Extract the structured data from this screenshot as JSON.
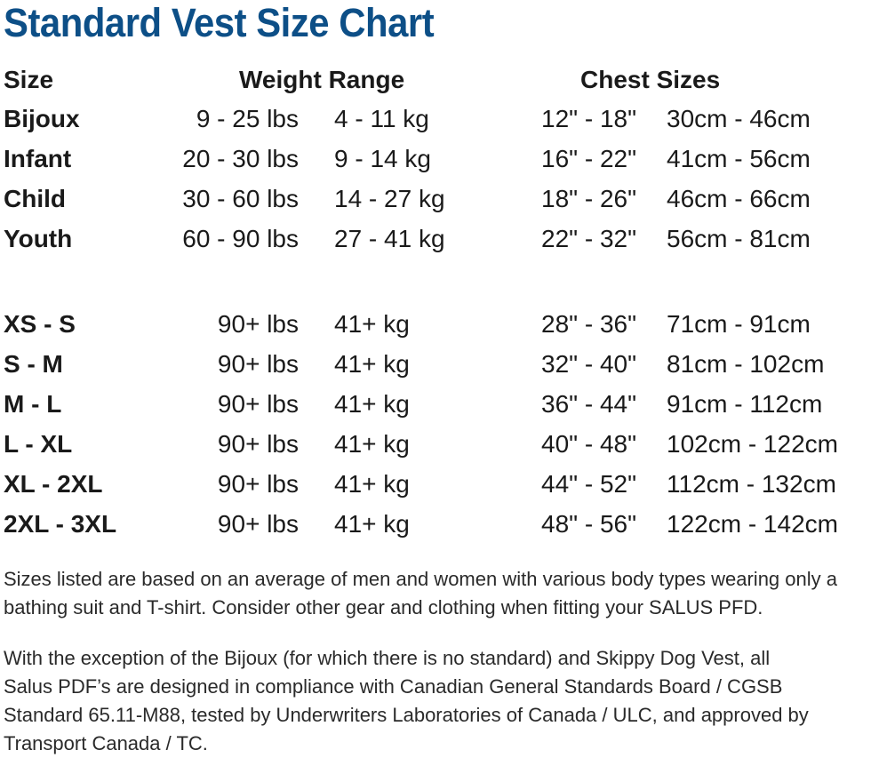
{
  "title": "Standard Vest Size Chart",
  "headers": {
    "size": "Size",
    "weight": "Weight Range",
    "chest": "Chest Sizes"
  },
  "rows": [
    {
      "size": "Bijoux",
      "lbs": "9 - 25 lbs",
      "kg": "4 - 11 kg",
      "inches": "12\" - 18\"",
      "cm": "30cm - 46cm"
    },
    {
      "size": "Infant",
      "lbs": "20 - 30 lbs",
      "kg": "9 - 14 kg",
      "inches": "16\" - 22\"",
      "cm": "41cm - 56cm"
    },
    {
      "size": "Child",
      "lbs": "30 - 60 lbs",
      "kg": "14 - 27 kg",
      "inches": "18\" - 26\"",
      "cm": "46cm - 66cm"
    },
    {
      "size": "Youth",
      "lbs": "60 - 90 lbs",
      "kg": "27 - 41 kg",
      "inches": "22\" - 32\"",
      "cm": "56cm - 81cm"
    },
    {
      "size": "XS - S",
      "lbs": "90+ lbs",
      "kg": "41+ kg",
      "inches": "28\" - 36\"",
      "cm": "71cm - 91cm"
    },
    {
      "size": "S - M",
      "lbs": "90+ lbs",
      "kg": "41+ kg",
      "inches": "32\" - 40\"",
      "cm": "81cm - 102cm"
    },
    {
      "size": "M - L",
      "lbs": "90+ lbs",
      "kg": "41+ kg",
      "inches": "36\" - 44\"",
      "cm": "91cm - 112cm"
    },
    {
      "size": "L - XL",
      "lbs": "90+ lbs",
      "kg": "41+ kg",
      "inches": "40\" - 48\"",
      "cm": "102cm - 122cm"
    },
    {
      "size": "XL - 2XL",
      "lbs": "90+ lbs",
      "kg": "41+ kg",
      "inches": "44\" - 52\"",
      "cm": "112cm - 132cm"
    },
    {
      "size": "2XL - 3XL",
      "lbs": "90+ lbs",
      "kg": "41+ kg",
      "inches": "48\" - 56\"",
      "cm": "122cm - 142cm"
    }
  ],
  "notes": {
    "fit": [
      "Sizes listed are based on an average of men and women with various body types wearing only a",
      "bathing suit and T-shirt. Consider other gear and clothing when fitting your SALUS PFD."
    ],
    "compliance": [
      "With the exception of the Bijoux (for which there is no standard) and Skippy Dog Vest, all",
      "Salus PDF’s are designed in compliance with Canadian General Standards Board / CGSB",
      "Standard 65.11-M88, tested by Underwriters Laboratories of Canada / ULC, and approved by",
      "Transport Canada / TC."
    ]
  },
  "colors": {
    "title": "#0d4f87",
    "text": "#1a1a1a"
  }
}
